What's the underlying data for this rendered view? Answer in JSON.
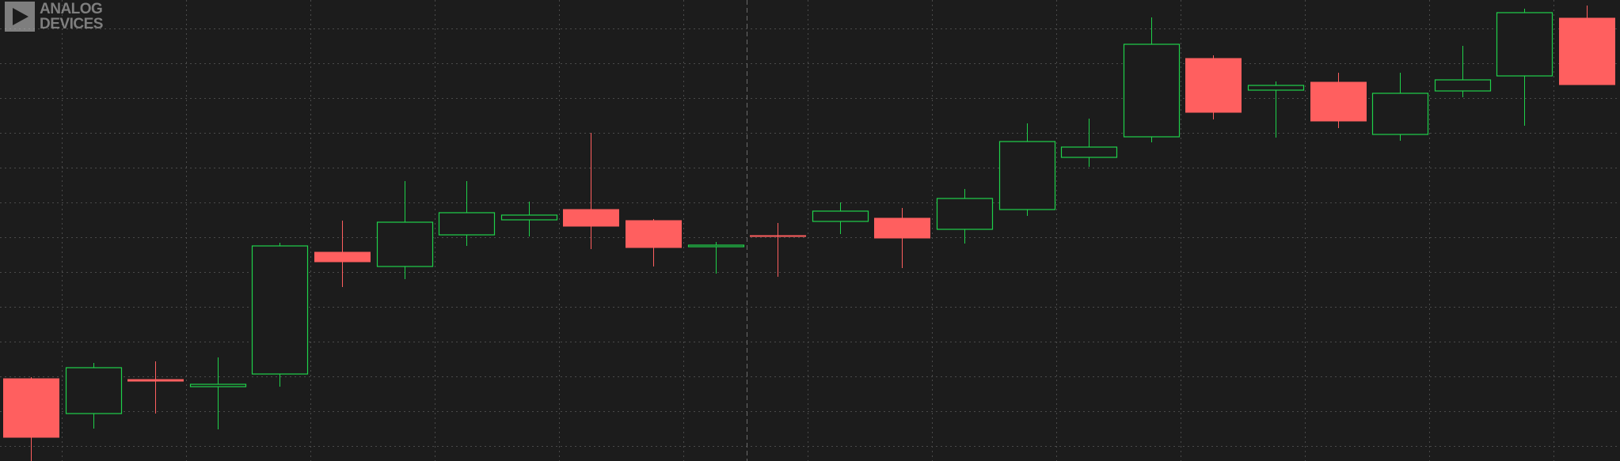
{
  "logo": {
    "line1": "ANALOG",
    "line2": "DEVICES"
  },
  "colors": {
    "background": "#1c1c1c",
    "grid": "#4a4a4a",
    "up": "#1fd14a",
    "down": "#ff5f5f",
    "divider": "#6a6a6a"
  },
  "chart_data": {
    "type": "candlestick",
    "grid": true,
    "y_axis_labels": "none",
    "ylim": [
      0,
      583
    ],
    "divider_after_index": 11,
    "candles": [
      {
        "o": 104,
        "h": 106,
        "l": 0,
        "c": 30,
        "dir": "down"
      },
      {
        "o": 60,
        "h": 124,
        "l": 41,
        "c": 118,
        "dir": "up"
      },
      {
        "o": 103,
        "h": 126,
        "l": 60,
        "c": 101,
        "dir": "down"
      },
      {
        "o": 94,
        "h": 131,
        "l": 40,
        "c": 97,
        "dir": "up"
      },
      {
        "o": 110,
        "h": 276,
        "l": 94,
        "c": 272,
        "dir": "up"
      },
      {
        "o": 264,
        "h": 304,
        "l": 220,
        "c": 252,
        "dir": "down"
      },
      {
        "o": 246,
        "h": 354,
        "l": 230,
        "c": 302,
        "dir": "up"
      },
      {
        "o": 286,
        "h": 354,
        "l": 272,
        "c": 314,
        "dir": "up"
      },
      {
        "o": 305,
        "h": 328,
        "l": 284,
        "c": 311,
        "dir": "up"
      },
      {
        "o": 318,
        "h": 415,
        "l": 268,
        "c": 297,
        "dir": "down"
      },
      {
        "o": 304,
        "h": 306,
        "l": 246,
        "c": 270,
        "dir": "down"
      },
      {
        "o": 271,
        "h": 277,
        "l": 237,
        "c": 273,
        "dir": "up"
      },
      {
        "o": 285,
        "h": 301,
        "l": 233,
        "c": 284,
        "dir": "down"
      },
      {
        "o": 303,
        "h": 327,
        "l": 287,
        "c": 316,
        "dir": "up"
      },
      {
        "o": 307,
        "h": 320,
        "l": 244,
        "c": 282,
        "dir": "down"
      },
      {
        "o": 293,
        "h": 344,
        "l": 275,
        "c": 332,
        "dir": "up"
      },
      {
        "o": 318,
        "h": 427,
        "l": 310,
        "c": 404,
        "dir": "up"
      },
      {
        "o": 384,
        "h": 433,
        "l": 372,
        "c": 397,
        "dir": "up"
      },
      {
        "o": 410,
        "h": 561,
        "l": 403,
        "c": 527,
        "dir": "up"
      },
      {
        "o": 509,
        "h": 513,
        "l": 432,
        "c": 441,
        "dir": "down"
      },
      {
        "o": 475,
        "h": 480,
        "l": 409,
        "c": 469,
        "dir": "up"
      },
      {
        "o": 479,
        "h": 491,
        "l": 421,
        "c": 430,
        "dir": "down"
      },
      {
        "o": 413,
        "h": 491,
        "l": 405,
        "c": 465,
        "dir": "up"
      },
      {
        "o": 468,
        "h": 525,
        "l": 460,
        "c": 482,
        "dir": "up"
      },
      {
        "o": 487,
        "h": 572,
        "l": 424,
        "c": 567,
        "dir": "up"
      },
      {
        "o": 560,
        "h": 576,
        "l": 476,
        "c": 476,
        "dir": "down"
      }
    ]
  }
}
